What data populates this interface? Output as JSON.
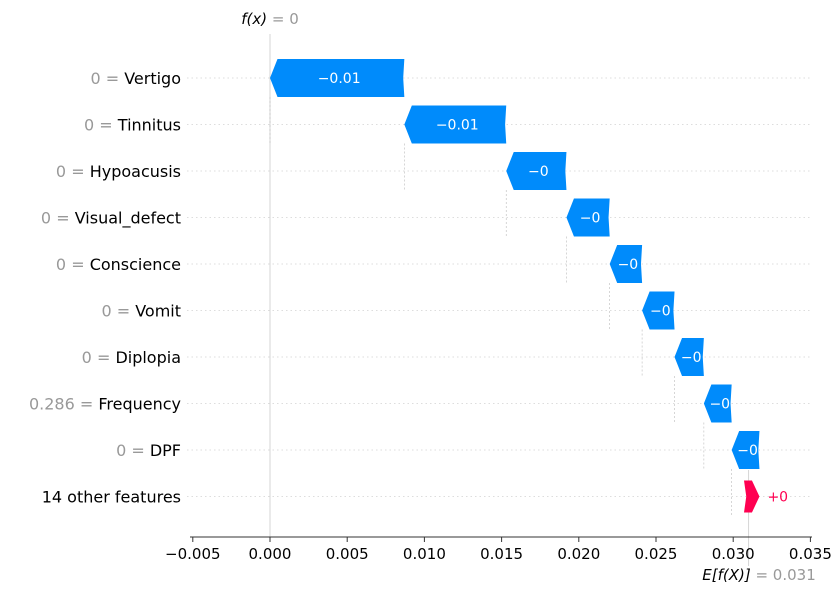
{
  "chart_data": {
    "type": "waterfall",
    "fx_label": "f(x)",
    "fx_value": "= 0",
    "ex_label": "E[f(X)]",
    "ex_value": "= 0.031",
    "base_value": 0.031,
    "output_value": 0.0,
    "features": [
      {
        "value": "0",
        "name": "Vertigo",
        "start": 0.0087,
        "end": 0.0,
        "label": "−0.01"
      },
      {
        "value": "0",
        "name": "Tinnitus",
        "start": 0.0153,
        "end": 0.0087,
        "label": "−0.01"
      },
      {
        "value": "0",
        "name": "Hypoacusis",
        "start": 0.0192,
        "end": 0.0153,
        "label": "−0"
      },
      {
        "value": "0",
        "name": "Visual_defect",
        "start": 0.022,
        "end": 0.0192,
        "label": "−0"
      },
      {
        "value": "0",
        "name": "Conscience",
        "start": 0.0241,
        "end": 0.022,
        "label": "−0"
      },
      {
        "value": "0",
        "name": "Vomit",
        "start": 0.0262,
        "end": 0.0241,
        "label": "−0"
      },
      {
        "value": "0",
        "name": "Diplopia",
        "start": 0.0281,
        "end": 0.0262,
        "label": "−0"
      },
      {
        "value": "0.286",
        "name": "Frequency",
        "start": 0.0299,
        "end": 0.0281,
        "label": "−0"
      },
      {
        "value": "0",
        "name": "DPF",
        "start": 0.0317,
        "end": 0.0299,
        "label": "−0"
      },
      {
        "value": "",
        "name": "14 other features",
        "start": 0.0307,
        "end": 0.0317,
        "label": "+0"
      }
    ],
    "x_ticks": [
      "−0.005",
      "0.000",
      "0.005",
      "0.010",
      "0.015",
      "0.020",
      "0.025",
      "0.030",
      "0.035"
    ],
    "x_tick_values": [
      -0.005,
      0.0,
      0.005,
      0.01,
      0.015,
      0.02,
      0.025,
      0.03,
      0.035
    ],
    "xlim": [
      -0.0053,
      0.0372
    ],
    "colors": {
      "negative": "#008bfb",
      "positive": "#ff0051",
      "grid": "#cccccc",
      "muted": "#999999"
    }
  }
}
